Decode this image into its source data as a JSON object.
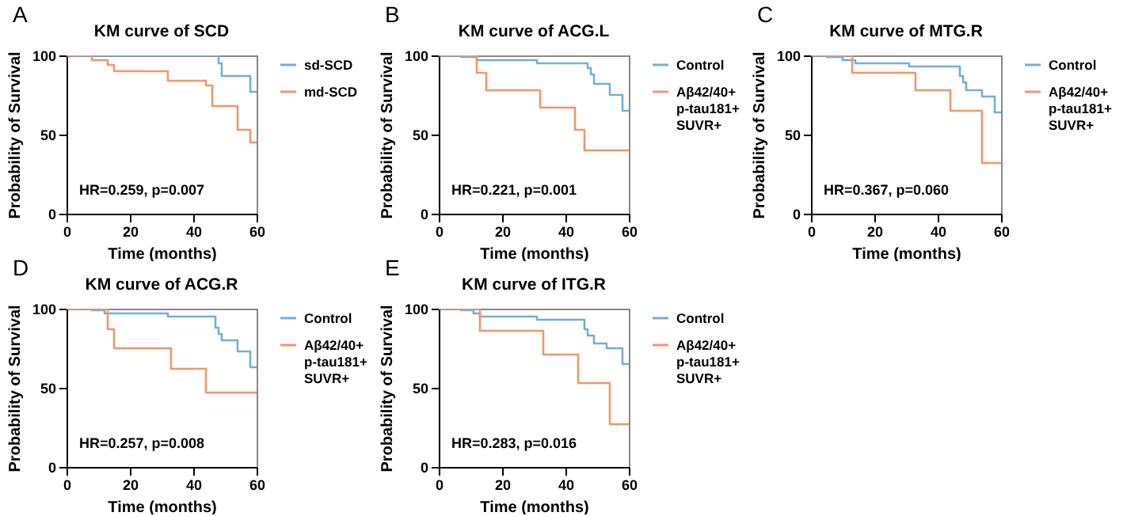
{
  "chart_data": [
    {
      "type": "step",
      "title": "KM curve of SCD",
      "xlabel": "Time (months)",
      "ylabel": "Probability of Survival",
      "xlim": [
        0,
        60
      ],
      "xticks": [
        0,
        20,
        40,
        60
      ],
      "ylim": [
        0,
        100
      ],
      "yticks": [
        0,
        50,
        100
      ],
      "legend": "right",
      "annotations": [
        "A",
        "HR=0.259, p=0.007"
      ],
      "series": [
        {
          "name": "sd-SCD",
          "color": "#74aed8",
          "x": [
            0,
            48,
            49,
            58,
            60
          ],
          "values": [
            100,
            95,
            87,
            77,
            77
          ]
        },
        {
          "name": "md-SCD",
          "color": "#f4956a",
          "x": [
            0,
            8,
            13,
            15,
            32,
            44,
            46,
            54,
            58,
            60
          ],
          "values": [
            100,
            97,
            94,
            90,
            84,
            81,
            68,
            53,
            45,
            45
          ]
        }
      ]
    },
    {
      "type": "step",
      "title": "KM curve of ACG.L",
      "xlabel": "Time (months)",
      "ylabel": "Probability of Survival",
      "xlim": [
        0,
        60
      ],
      "xticks": [
        0,
        20,
        40,
        60
      ],
      "ylim": [
        0,
        100
      ],
      "yticks": [
        0,
        50,
        100
      ],
      "legend": "right",
      "annotations": [
        "B",
        "HR=0.221, p=0.001"
      ],
      "series": [
        {
          "name": "Control",
          "color": "#74aed8",
          "x": [
            0,
            7,
            12,
            31,
            47,
            48,
            49,
            54,
            58,
            60
          ],
          "values": [
            100,
            99,
            97,
            95,
            92,
            88,
            82,
            75,
            65,
            65
          ]
        },
        {
          "name": "Aβ42/40+ p-tau181+ SUVR+",
          "color": "#f4956a",
          "x": [
            0,
            12,
            15,
            32,
            43,
            46,
            60
          ],
          "values": [
            100,
            89,
            78,
            67,
            53,
            40,
            40
          ]
        }
      ]
    },
    {
      "type": "step",
      "title": "KM curve of MTG.R",
      "xlabel": "Time (months)",
      "ylabel": "Probability of Survival",
      "xlim": [
        0,
        60
      ],
      "xticks": [
        0,
        20,
        40,
        60
      ],
      "ylim": [
        0,
        100
      ],
      "yticks": [
        0,
        50,
        100
      ],
      "legend": "right",
      "annotations": [
        "C",
        "HR=0.367, p=0.060"
      ],
      "series": [
        {
          "name": "Control",
          "color": "#74aed8",
          "x": [
            0,
            5,
            10,
            14,
            31,
            47,
            48,
            49,
            54,
            58,
            60
          ],
          "values": [
            100,
            99,
            97,
            95,
            93,
            87,
            83,
            78,
            74,
            64,
            64
          ]
        },
        {
          "name": "Aβ42/40+ p-tau181+ SUVR+",
          "color": "#f4956a",
          "x": [
            0,
            13,
            33,
            44,
            54,
            60
          ],
          "values": [
            100,
            89,
            78,
            65,
            32,
            32
          ]
        }
      ]
    },
    {
      "type": "step",
      "title": "KM curve of ACG.R",
      "xlabel": "Time (months)",
      "ylabel": "Probability of Survival",
      "xlim": [
        0,
        60
      ],
      "xticks": [
        0,
        20,
        40,
        60
      ],
      "ylim": [
        0,
        100
      ],
      "yticks": [
        0,
        50,
        100
      ],
      "legend": "right",
      "annotations": [
        "D",
        "HR=0.257, p=0.008"
      ],
      "series": [
        {
          "name": "Control",
          "color": "#74aed8",
          "x": [
            0,
            8,
            12,
            32,
            47,
            48,
            49,
            54,
            58,
            60
          ],
          "values": [
            100,
            99,
            97,
            95,
            88,
            84,
            80,
            73,
            63,
            63
          ]
        },
        {
          "name": "Aβ42/40+ p-tau181+ SUVR+",
          "color": "#f4956a",
          "x": [
            0,
            13,
            15,
            33,
            44,
            60
          ],
          "values": [
            100,
            87,
            75,
            62,
            47,
            47
          ]
        }
      ]
    },
    {
      "type": "step",
      "title": "KM curve of ITG.R",
      "xlabel": "Time (months)",
      "ylabel": "Probability of Survival",
      "xlim": [
        0,
        60
      ],
      "xticks": [
        0,
        20,
        40,
        60
      ],
      "ylim": [
        0,
        100
      ],
      "yticks": [
        0,
        50,
        100
      ],
      "legend": "right",
      "annotations": [
        "E",
        "HR=0.283, p=0.016"
      ],
      "series": [
        {
          "name": "Control",
          "color": "#74aed8",
          "x": [
            0,
            7,
            11,
            13,
            31,
            46,
            47,
            49,
            53,
            58,
            60
          ],
          "values": [
            100,
            99,
            97,
            95,
            93,
            87,
            83,
            78,
            75,
            65,
            65
          ]
        },
        {
          "name": "Aβ42/40+ p-tau181+ SUVR+",
          "color": "#f4956a",
          "x": [
            0,
            13,
            33,
            44,
            54,
            60
          ],
          "values": [
            100,
            86,
            71,
            53,
            27,
            27
          ]
        }
      ]
    }
  ]
}
